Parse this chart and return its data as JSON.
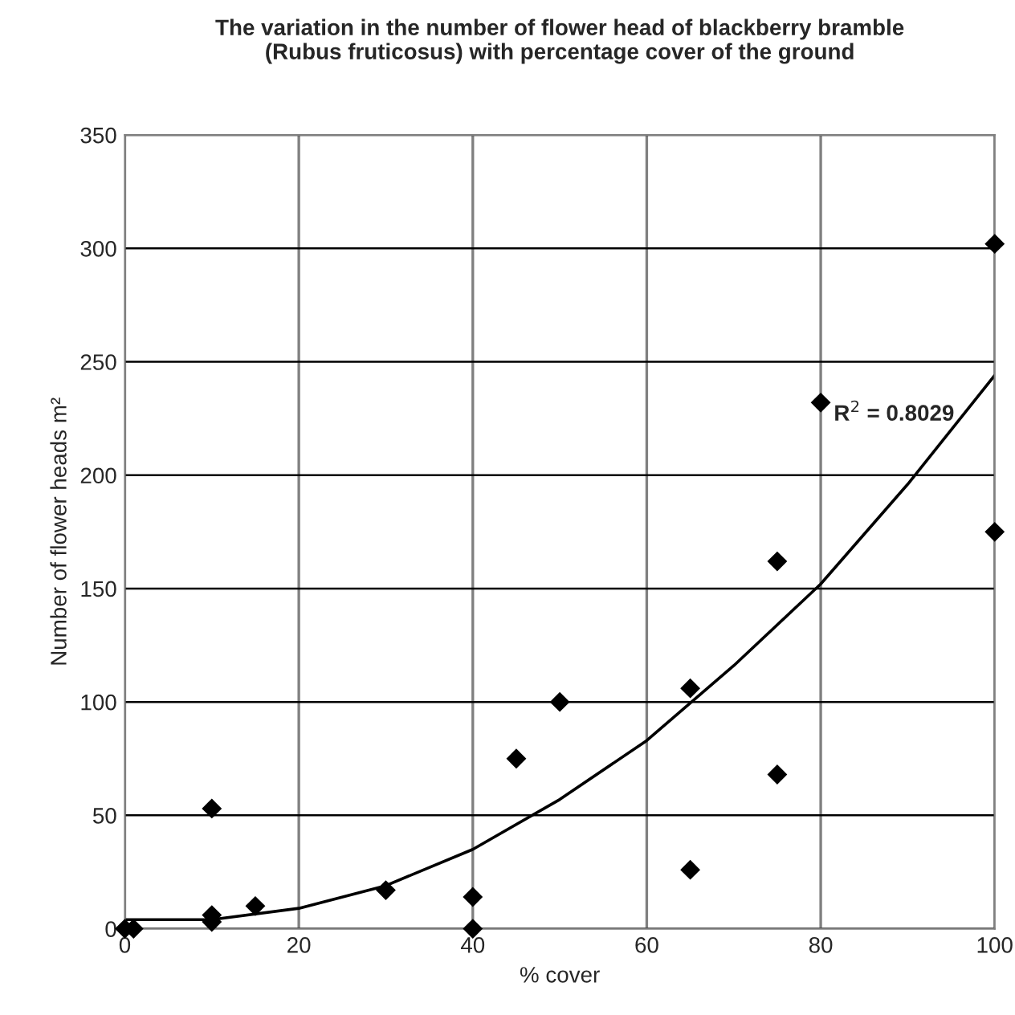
{
  "chart_data": {
    "type": "scatter",
    "title": "The variation in the number of flower head of blackberry bramble\n(Rubus fruticosus) with percentage cover of the ground",
    "xlabel": "% cover",
    "ylabel": "Number of flower heads m²",
    "series": [
      {
        "color": "#000000",
        "marker": "diamond",
        "x": [
          0,
          1,
          10,
          10,
          10,
          15,
          30,
          40,
          40,
          45,
          50,
          65,
          65,
          75,
          75,
          80,
          100,
          100
        ],
        "values": [
          0,
          0,
          53,
          6,
          3,
          10,
          17,
          14,
          0,
          75,
          100,
          106,
          26,
          162,
          68,
          232,
          302,
          175
        ]
      },
      {
        "type": "line",
        "color": "#000000",
        "marker": "none",
        "x": [
          0,
          10,
          20,
          30,
          40,
          50,
          60,
          70,
          80,
          90,
          100
        ],
        "values": [
          4,
          4,
          9,
          19,
          35,
          57,
          83,
          116,
          152,
          196,
          244
        ]
      }
    ],
    "annotations": [
      "R$^{2}$ = 0.8029"
    ],
    "xlim": [
      0,
      100
    ],
    "xticks": [
      0,
      20,
      40,
      60,
      80,
      100
    ],
    "ylim": [
      0,
      350
    ],
    "yticks": [
      0,
      50,
      100,
      150,
      200,
      250,
      300,
      350
    ],
    "grid": true,
    "legend": false
  }
}
